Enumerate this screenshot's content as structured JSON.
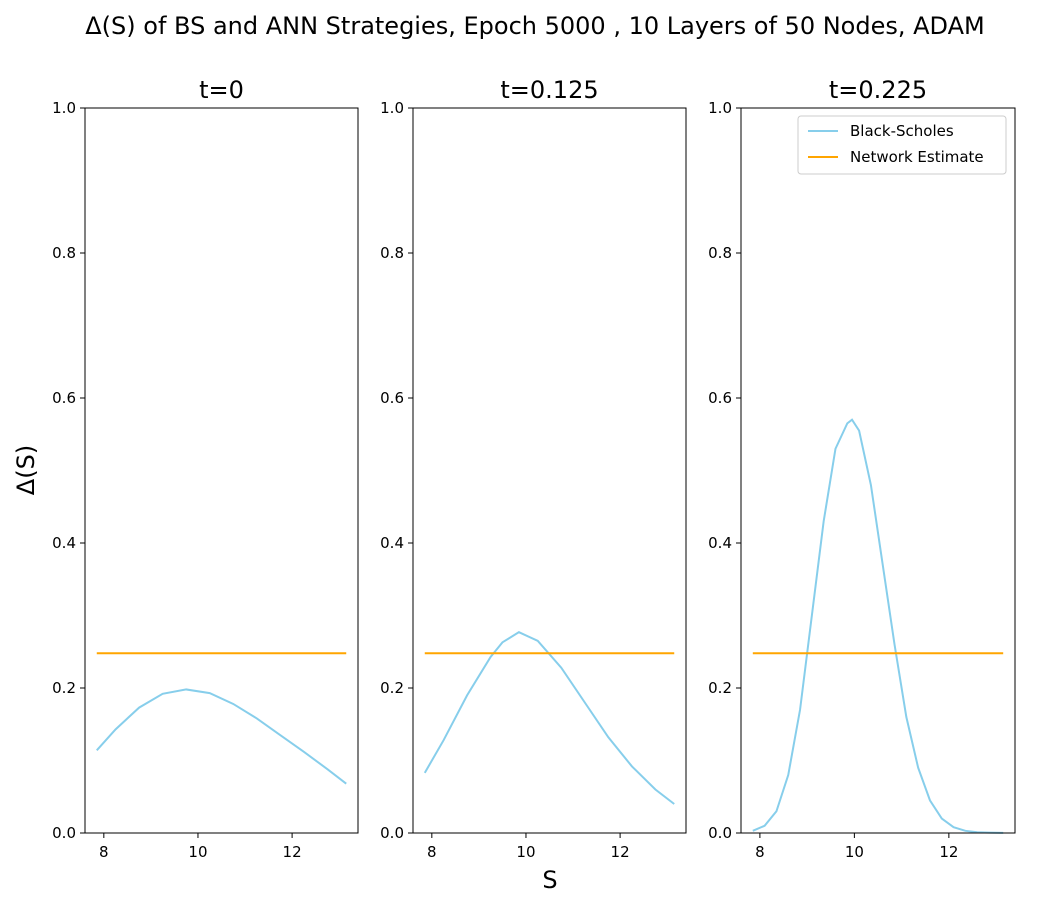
{
  "figure": {
    "suptitle": "Δ(S) of BS and ANN Strategies, Epoch 5000 , 10 Layers of 50 Nodes, ADAM",
    "xlabel": "S",
    "ylabel": "Δ(S)"
  },
  "legend": {
    "placement": "upper-right",
    "entries": [
      "Black-Scholes",
      "Network Estimate"
    ]
  },
  "colors": {
    "black_scholes": "#87CEEB",
    "network": "#FFA500"
  },
  "chart_data": [
    {
      "type": "line",
      "title": "t=0",
      "xlim": [
        7.6,
        13.4
      ],
      "ylim": [
        0,
        1.0
      ],
      "xticks": [
        8,
        10,
        12
      ],
      "yticks": [
        0.0,
        0.2,
        0.4,
        0.6,
        0.8,
        1.0
      ],
      "x": [
        7.85,
        8.25,
        8.75,
        9.25,
        9.75,
        10.25,
        10.75,
        11.25,
        11.75,
        12.25,
        12.75,
        13.15
      ],
      "series": [
        {
          "name": "Black-Scholes",
          "values": [
            0.114,
            0.143,
            0.173,
            0.192,
            0.198,
            0.193,
            0.178,
            0.158,
            0.135,
            0.112,
            0.088,
            0.068
          ]
        },
        {
          "name": "Network Estimate",
          "values": [
            0.248,
            0.248,
            0.248,
            0.248,
            0.248,
            0.248,
            0.248,
            0.248,
            0.248,
            0.248,
            0.248,
            0.248
          ]
        }
      ]
    },
    {
      "type": "line",
      "title": "t=0.125",
      "xlim": [
        7.6,
        13.4
      ],
      "ylim": [
        0,
        1.0
      ],
      "xticks": [
        8,
        10,
        12
      ],
      "yticks": [
        0.0,
        0.2,
        0.4,
        0.6,
        0.8,
        1.0
      ],
      "x": [
        7.85,
        8.25,
        8.75,
        9.25,
        9.5,
        9.85,
        10.25,
        10.75,
        11.25,
        11.75,
        12.25,
        12.75,
        13.15
      ],
      "series": [
        {
          "name": "Black-Scholes",
          "values": [
            0.083,
            0.128,
            0.19,
            0.243,
            0.263,
            0.277,
            0.265,
            0.228,
            0.18,
            0.132,
            0.092,
            0.06,
            0.04
          ]
        },
        {
          "name": "Network Estimate",
          "values": [
            0.248,
            0.248,
            0.248,
            0.248,
            0.248,
            0.248,
            0.248,
            0.248,
            0.248,
            0.248,
            0.248,
            0.248,
            0.248
          ]
        }
      ]
    },
    {
      "type": "line",
      "title": "t=0.225",
      "xlim": [
        7.6,
        13.4
      ],
      "ylim": [
        0,
        1.0
      ],
      "xticks": [
        8,
        10,
        12
      ],
      "yticks": [
        0.0,
        0.2,
        0.4,
        0.6,
        0.8,
        1.0
      ],
      "x": [
        7.85,
        8.1,
        8.35,
        8.6,
        8.85,
        9.1,
        9.35,
        9.6,
        9.85,
        9.95,
        10.1,
        10.35,
        10.6,
        10.85,
        11.1,
        11.35,
        11.6,
        11.85,
        12.1,
        12.35,
        12.6,
        12.85,
        13.15
      ],
      "series": [
        {
          "name": "Black-Scholes",
          "values": [
            0.003,
            0.01,
            0.03,
            0.08,
            0.17,
            0.3,
            0.43,
            0.53,
            0.565,
            0.57,
            0.555,
            0.48,
            0.37,
            0.26,
            0.16,
            0.09,
            0.045,
            0.02,
            0.008,
            0.003,
            0.001,
            0.0005,
            0.0002
          ]
        },
        {
          "name": "Network Estimate",
          "values": [
            0.248,
            0.248,
            0.248,
            0.248,
            0.248,
            0.248,
            0.248,
            0.248,
            0.248,
            0.248,
            0.248,
            0.248,
            0.248,
            0.248,
            0.248,
            0.248,
            0.248,
            0.248,
            0.248,
            0.248,
            0.248,
            0.248,
            0.248
          ]
        }
      ]
    }
  ]
}
